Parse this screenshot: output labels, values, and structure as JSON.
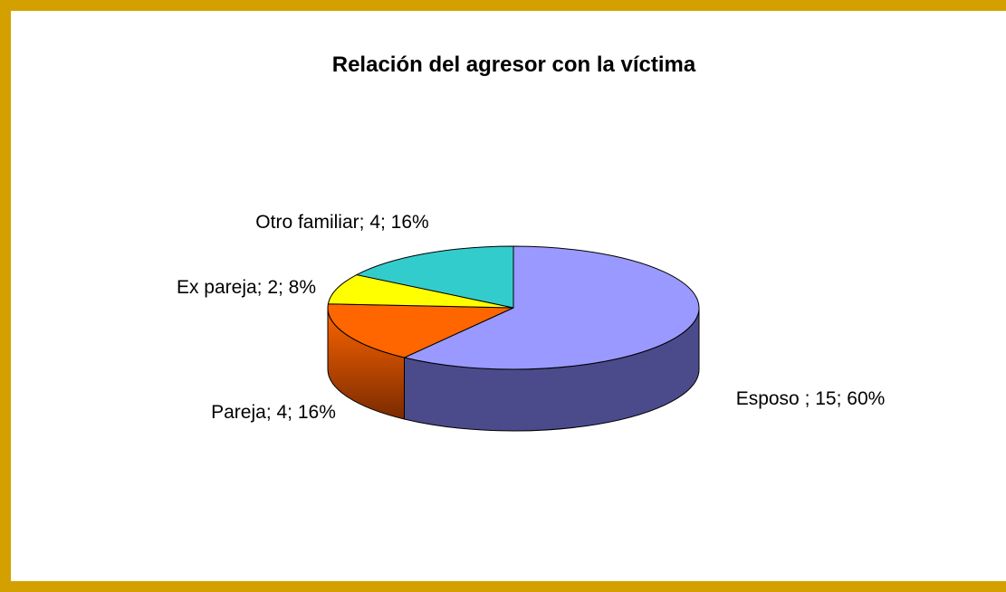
{
  "chart_data": {
    "type": "pie",
    "title": "Relación del  agresor con la víctima",
    "categories": [
      "Esposo",
      "Pareja",
      "Ex pareja",
      "Otro familiar"
    ],
    "values": [
      15,
      4,
      2,
      4
    ],
    "value_labels": [
      "Esposo ; 15; 60%",
      "Pareja; 4; 16%",
      "Ex pareja; 2; 8%",
      "Otro familiar; 4; 16%"
    ],
    "colors": [
      "#9999ff",
      "#ff6600",
      "#ffff00",
      "#33cccc"
    ],
    "side_colors": [
      "#4b4b8c",
      "#7a2a00",
      "#8a8a00",
      "#1a6666"
    ]
  }
}
